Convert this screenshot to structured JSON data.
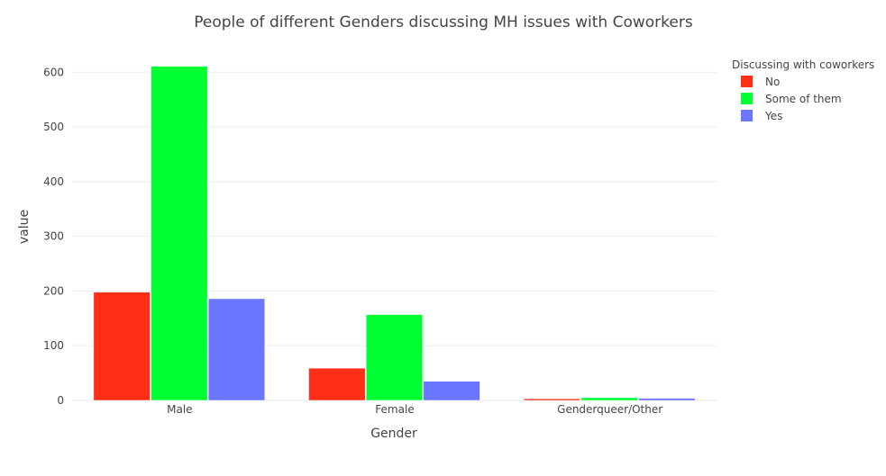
{
  "chart_data": {
    "type": "bar",
    "title": "People of different Genders discussing MH issues with Coworkers",
    "xlabel": "Gender",
    "ylabel": "value",
    "categories": [
      "Male",
      "Female",
      "Genderqueer/Other"
    ],
    "ylim": [
      0,
      640
    ],
    "yticks": [
      0,
      100,
      200,
      300,
      400,
      500,
      600
    ],
    "grid": true,
    "legend_title": "Discussing with coworkers",
    "legend_position": "top-right",
    "series": [
      {
        "name": "No",
        "color": "#ff2e17",
        "values": [
          198,
          59,
          3
        ]
      },
      {
        "name": "Some of them",
        "color": "#00ff33",
        "values": [
          611,
          157,
          5
        ]
      },
      {
        "name": "Yes",
        "color": "#6b77ff",
        "values": [
          186,
          35,
          4
        ]
      }
    ]
  }
}
